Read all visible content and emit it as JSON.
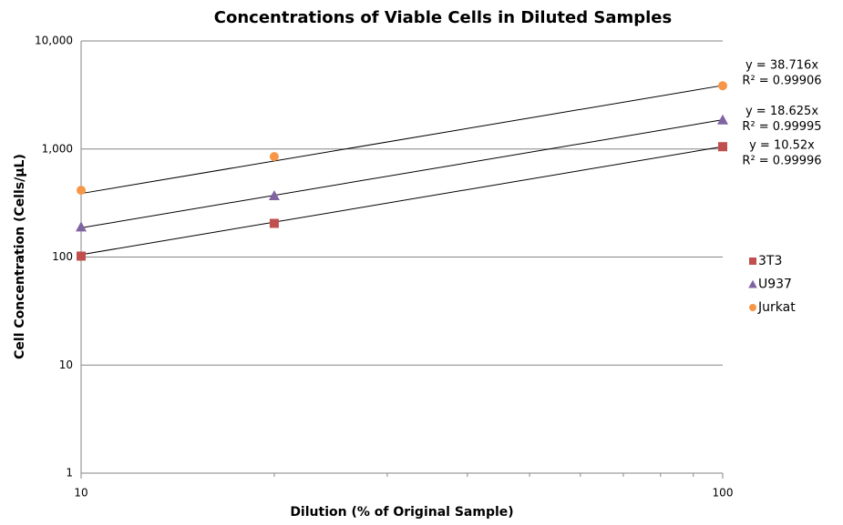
{
  "chart_data": {
    "type": "scatter",
    "title": "Concentrations of Viable Cells in Diluted Samples",
    "x_label": "Dilution (% of Original Sample)",
    "y_label": "Cell Concentration (Cells/µL)",
    "log_x": true,
    "log_y": true,
    "grid": true,
    "legend": "right",
    "xlim": [
      10,
      100
    ],
    "xticks": [
      10,
      100
    ],
    "xminorticks": [
      20,
      30,
      40,
      50,
      60,
      70,
      80,
      90
    ],
    "ylim": [
      1,
      10000
    ],
    "yticks": [
      1,
      10,
      100,
      {
        "value": 1000,
        "label": "1,000"
      },
      {
        "value": 10000,
        "label": "10,000"
      }
    ],
    "series": [
      {
        "name": "3T3",
        "color": "#c0504d",
        "marker": "square",
        "x": [
          10,
          20,
          100
        ],
        "values": [
          102,
          205,
          1050
        ],
        "trendline": {
          "slope": 10.52,
          "label": "y = 10.52x",
          "r2_label": "R² = 0.99996"
        }
      },
      {
        "name": "U937",
        "color": "#8064a2",
        "marker": "triangle",
        "x": [
          10,
          20,
          100
        ],
        "values": [
          190,
          370,
          1860
        ],
        "trendline": {
          "slope": 18.625,
          "label": "y = 18.625x",
          "r2_label": "R² = 0.99995"
        }
      },
      {
        "name": "Jurkat",
        "color": "#f79646",
        "marker": "circle",
        "x": [
          10,
          20,
          100
        ],
        "values": [
          415,
          850,
          3850
        ],
        "trendline": {
          "slope": 38.716,
          "label": "y = 38.716x",
          "r2_label": "R² = 0.99906"
        }
      }
    ]
  }
}
